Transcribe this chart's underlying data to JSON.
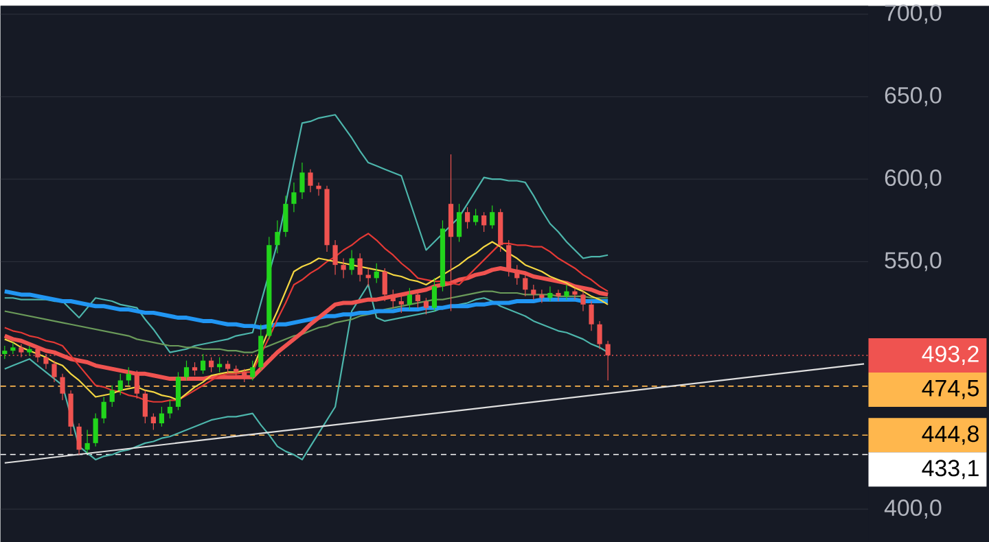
{
  "chart_data": {
    "type": "candlestick",
    "categories": [
      null,
      null,
      null,
      null,
      null,
      null,
      null,
      null,
      null,
      null,
      null,
      null,
      null,
      null,
      null,
      null,
      null,
      null,
      null,
      null,
      null,
      null,
      null,
      null,
      null,
      null,
      null,
      null,
      null,
      null,
      null,
      null,
      null,
      null,
      null,
      null,
      null,
      null,
      null,
      null,
      null,
      null,
      null,
      null,
      null,
      null,
      null,
      null,
      null,
      null,
      null,
      null,
      null,
      null,
      null,
      null,
      null,
      null,
      null,
      null,
      null,
      null,
      null,
      null,
      null,
      null,
      null,
      null,
      null,
      null,
      null,
      null,
      null,
      null,
      null,
      null,
      null,
      null,
      null,
      null,
      null,
      null,
      null,
      null,
      null,
      null,
      null,
      null,
      null,
      null,
      null,
      null,
      null,
      null,
      null,
      null,
      null,
      null,
      null,
      null,
      null,
      null,
      null,
      null,
      null
    ],
    "ohlc": [
      [
        494,
        499,
        491,
        496
      ],
      [
        496,
        501,
        494,
        498
      ],
      [
        498,
        500,
        492,
        495
      ],
      [
        495,
        499,
        493,
        497
      ],
      [
        497,
        499,
        489,
        492
      ],
      [
        492,
        494,
        485,
        488
      ],
      [
        488,
        490,
        477,
        480
      ],
      [
        480,
        482,
        466,
        470
      ],
      [
        470,
        472,
        445,
        450
      ],
      [
        450,
        452,
        433,
        436
      ],
      [
        436,
        448,
        434,
        440
      ],
      [
        440,
        458,
        438,
        455
      ],
      [
        455,
        468,
        452,
        465
      ],
      [
        465,
        475,
        462,
        472
      ],
      [
        472,
        482,
        469,
        478
      ],
      [
        478,
        486,
        475,
        482
      ],
      [
        482,
        484,
        467,
        470
      ],
      [
        470,
        472,
        452,
        456
      ],
      [
        456,
        458,
        448,
        452
      ],
      [
        452,
        462,
        450,
        458
      ],
      [
        458,
        466,
        455,
        462
      ],
      [
        462,
        483,
        460,
        480
      ],
      [
        480,
        490,
        478,
        486
      ],
      [
        486,
        489,
        481,
        484
      ],
      [
        484,
        494,
        482,
        490
      ],
      [
        490,
        492,
        483,
        486
      ],
      [
        486,
        492,
        483,
        488
      ],
      [
        488,
        490,
        482,
        485
      ],
      [
        485,
        487,
        480,
        483
      ],
      [
        483,
        485,
        477,
        480
      ],
      [
        480,
        490,
        478,
        486
      ],
      [
        486,
        512,
        484,
        505
      ],
      [
        505,
        565,
        503,
        560
      ],
      [
        560,
        575,
        555,
        568
      ],
      [
        568,
        590,
        565,
        585
      ],
      [
        585,
        598,
        580,
        592
      ],
      [
        592,
        610,
        588,
        604
      ],
      [
        604,
        606,
        592,
        596
      ],
      [
        596,
        598,
        590,
        594
      ],
      [
        594,
        596,
        556,
        560
      ],
      [
        560,
        563,
        542,
        548
      ],
      [
        548,
        552,
        540,
        545
      ],
      [
        545,
        557,
        542,
        552
      ],
      [
        552,
        555,
        538,
        542
      ],
      [
        542,
        546,
        535,
        540
      ],
      [
        540,
        549,
        537,
        544
      ],
      [
        544,
        546,
        526,
        530
      ],
      [
        530,
        533,
        522,
        526
      ],
      [
        526,
        529,
        519,
        524
      ],
      [
        524,
        534,
        521,
        530
      ],
      [
        530,
        532,
        522,
        526
      ],
      [
        526,
        528,
        518,
        522
      ],
      [
        522,
        540,
        520,
        535
      ],
      [
        535,
        575,
        532,
        570
      ],
      [
        585,
        615,
        520,
        565
      ],
      [
        565,
        585,
        562,
        580
      ],
      [
        580,
        583,
        570,
        574
      ],
      [
        574,
        582,
        572,
        578
      ],
      [
        578,
        580,
        568,
        572
      ],
      [
        572,
        584,
        570,
        580
      ],
      [
        580,
        582,
        556,
        560
      ],
      [
        560,
        563,
        541,
        545
      ],
      [
        545,
        548,
        536,
        540
      ],
      [
        540,
        542,
        529,
        533
      ],
      [
        533,
        536,
        527,
        530
      ],
      [
        530,
        533,
        525,
        528
      ],
      [
        528,
        535,
        526,
        531
      ],
      [
        531,
        533,
        526,
        529
      ],
      [
        529,
        536,
        527,
        532
      ],
      [
        532,
        534,
        527,
        530
      ],
      [
        530,
        532,
        520,
        524
      ],
      [
        524,
        526,
        508,
        512
      ],
      [
        512,
        514,
        497,
        500
      ],
      [
        500,
        502,
        478,
        493.2
      ],
      null,
      null,
      null,
      null,
      null,
      null,
      null,
      null,
      null,
      null,
      null,
      null,
      null,
      null,
      null,
      null,
      null,
      null,
      null,
      null,
      null,
      null,
      null,
      null,
      null,
      null,
      null,
      null,
      null,
      null,
      null
    ],
    "series": [
      {
        "type": "line",
        "color": "#4db6ac",
        "values": [
          528,
          528,
          527,
          527,
          527,
          527,
          526,
          526,
          521,
          516,
          522,
          528,
          527,
          526,
          524,
          523,
          522,
          515,
          509,
          502,
          495,
          496,
          497,
          499,
          500,
          501,
          502,
          503,
          505,
          506,
          507,
          525,
          null,
          561,
          585,
          610,
          634,
          635,
          637,
          638,
          639,
          632,
          625,
          617,
          610,
          608,
          606,
          604,
          602,
          587,
          572,
          557,
          562,
          567,
          572,
          577,
          585,
          593,
          601,
          600,
          600,
          599,
          599,
          598,
          590,
          581,
          573,
          568,
          562,
          557,
          552,
          553,
          553,
          554,
          null,
          null,
          null,
          null,
          null,
          null,
          null,
          null,
          null,
          null,
          null,
          null,
          null,
          null,
          null,
          null,
          null,
          null,
          null,
          null,
          null,
          null,
          null,
          null,
          null,
          null,
          null,
          null,
          null,
          null,
          null
        ]
      },
      {
        "type": "line",
        "color": "#4db6ac",
        "values": [
          485,
          487,
          489,
          491,
          487,
          483,
          479,
          475,
          null,
          438,
          434,
          430,
          432,
          433,
          435,
          436,
          438,
          440,
          441,
          443,
          444,
          446,
          448,
          450,
          452,
          454,
          455,
          456,
          456,
          457,
          458,
          451,
          445,
          438,
          435,
          433,
          430,
          438,
          446,
          454,
          462,
          491,
          520,
          528,
          536,
          516,
          514,
          515,
          516,
          517,
          518,
          519,
          520,
          522,
          523,
          524,
          525,
          527,
          528,
          526,
          523,
          521,
          519,
          517,
          514,
          512,
          510,
          508,
          507,
          505,
          503,
          500,
          498,
          495,
          null,
          null,
          null,
          null,
          null,
          null,
          null,
          null,
          null,
          null,
          null,
          null,
          null,
          null,
          null,
          null,
          null,
          null,
          null,
          null,
          null,
          null,
          null,
          null,
          null,
          null,
          null,
          null,
          null,
          null,
          null
        ]
      },
      {
        "type": "line",
        "color": "#6b9b5a",
        "values": [
          520,
          519,
          518,
          517,
          516,
          515,
          514,
          513,
          512,
          511,
          510,
          509,
          508,
          507,
          506,
          505,
          503,
          502,
          501,
          500,
          499,
          499,
          498,
          498,
          497,
          497,
          497,
          496,
          496,
          495,
          495,
          497,
          499,
          501,
          503,
          505,
          506,
          508,
          510,
          511,
          513,
          514,
          515,
          517,
          518,
          519,
          521,
          522,
          523,
          524,
          525,
          526,
          527,
          527,
          528,
          529,
          530,
          531,
          532,
          532,
          531,
          531,
          531,
          530,
          530,
          530,
          530,
          529,
          529,
          529,
          529,
          528,
          528,
          528,
          null,
          null,
          null,
          null,
          null,
          null,
          null,
          null,
          null,
          null,
          null,
          null,
          null,
          null,
          null,
          null,
          null,
          null,
          null,
          null,
          null,
          null,
          null,
          null,
          null,
          null,
          null,
          null,
          null,
          null,
          null
        ]
      },
      {
        "type": "line",
        "color": "#2196f3",
        "values": [
          532,
          531,
          530,
          530,
          529,
          528,
          527,
          526,
          526,
          525,
          524,
          523,
          523,
          522,
          521,
          521,
          520,
          519,
          519,
          518,
          517,
          516,
          516,
          515,
          514,
          514,
          513,
          512,
          512,
          511,
          511,
          510,
          511,
          512,
          512,
          513,
          514,
          515,
          516,
          517,
          517,
          518,
          518,
          519,
          519,
          520,
          520,
          520,
          521,
          521,
          521,
          522,
          522,
          522,
          523,
          523,
          523,
          524,
          524,
          525,
          525,
          525,
          526,
          526,
          526,
          527,
          527,
          527,
          527,
          527,
          526,
          526,
          526,
          526,
          null,
          null,
          null,
          null,
          null,
          null,
          null,
          null,
          null,
          null,
          null,
          null,
          null,
          null,
          null,
          null,
          null,
          null,
          null,
          null,
          null,
          null,
          null,
          null,
          null,
          null,
          null,
          null,
          null,
          null,
          null
        ]
      },
      {
        "type": "line",
        "color": "#f05350",
        "values": [
          505,
          503,
          502,
          500,
          498,
          496,
          495,
          493,
          491,
          490,
          489,
          487,
          486,
          485,
          484,
          483,
          482,
          482,
          481,
          480,
          479,
          479,
          479,
          479,
          479,
          480,
          480,
          480,
          480,
          480,
          480,
          485,
          490,
          495,
          499,
          503,
          507,
          512,
          516,
          520,
          524,
          525,
          525,
          526,
          527,
          527,
          528,
          529,
          530,
          531,
          532,
          533,
          535,
          536,
          537,
          539,
          540,
          542,
          543,
          545,
          546,
          545,
          544,
          543,
          541,
          540,
          539,
          538,
          537,
          535,
          534,
          533,
          531,
          530,
          null,
          null,
          null,
          null,
          null,
          null,
          null,
          null,
          null,
          null,
          null,
          null,
          null,
          null,
          null,
          null,
          null,
          null,
          null,
          null,
          null,
          null,
          null,
          null,
          null,
          null,
          null,
          null,
          null,
          null,
          null
        ]
      },
      {
        "type": "line",
        "color": "#e53935",
        "values": [
          510,
          508,
          507,
          505,
          504,
          502,
          501,
          499,
          493,
          487,
          481,
          475,
          474,
          472,
          471,
          469,
          468,
          466,
          465,
          465,
          466,
          466,
          469,
          472,
          475,
          478,
          481,
          482,
          482,
          483,
          483,
          494,
          504,
          515,
          525,
          536,
          539,
          543,
          546,
          550,
          553,
          557,
          560,
          564,
          567,
          563,
          558,
          554,
          549,
          545,
          540,
          539,
          538,
          538,
          537,
          536,
          541,
          546,
          551,
          556,
          561,
          561,
          560,
          560,
          559,
          559,
          556,
          552,
          549,
          546,
          542,
          539,
          535,
          532,
          null,
          null,
          null,
          null,
          null,
          null,
          null,
          null,
          null,
          null,
          null,
          null,
          null,
          null,
          null,
          null,
          null,
          null,
          null,
          null,
          null,
          null,
          null,
          null,
          null,
          null,
          null,
          null,
          null,
          null,
          null
        ]
      },
      {
        "type": "line",
        "color": "#f5d742",
        "values": [
          503,
          501,
          498,
          496,
          494,
          492,
          489,
          487,
          482,
          478,
          473,
          468,
          469,
          470,
          472,
          473,
          474,
          472,
          471,
          469,
          468,
          466,
          470,
          474,
          477,
          481,
          482,
          483,
          483,
          484,
          485,
          497,
          509,
          520,
          532,
          544,
          547,
          549,
          552,
          551,
          550,
          549,
          548,
          547,
          546,
          545,
          544,
          542,
          541,
          539,
          538,
          536,
          539,
          542,
          545,
          548,
          552,
          555,
          559,
          562,
          559,
          555,
          552,
          548,
          546,
          544,
          541,
          539,
          537,
          534,
          532,
          529,
          527,
          524,
          null,
          null,
          null,
          null,
          null,
          null,
          null,
          null,
          null,
          null,
          null,
          null,
          null,
          null,
          null,
          null,
          null,
          null,
          null,
          null,
          null,
          null,
          null,
          null,
          null,
          null,
          null,
          null,
          null,
          null,
          null
        ]
      },
      {
        "type": "line",
        "color": "#e0e0e0",
        "values": [
          428,
          null,
          null,
          null,
          null,
          null,
          null,
          null,
          null,
          null,
          null,
          null,
          null,
          null,
          null,
          null,
          null,
          null,
          null,
          null,
          null,
          null,
          null,
          null,
          null,
          null,
          null,
          null,
          null,
          null,
          null,
          null,
          null,
          null,
          null,
          null,
          null,
          null,
          null,
          null,
          null,
          null,
          null,
          null,
          null,
          null,
          null,
          null,
          null,
          null,
          null,
          null,
          null,
          null,
          null,
          null,
          null,
          null,
          null,
          null,
          null,
          null,
          null,
          null,
          null,
          null,
          null,
          null,
          null,
          null,
          null,
          null,
          null,
          null,
          null,
          null,
          null,
          null,
          null,
          null,
          null,
          null,
          null,
          null,
          null,
          null,
          null,
          null,
          null,
          null,
          null,
          null,
          null,
          null,
          null,
          null,
          null,
          null,
          null,
          null,
          null,
          null,
          null,
          null,
          488
        ]
      }
    ],
    "ref_lines": [
      {
        "axis": "y",
        "value": 493.2,
        "label": "493,2",
        "color": "#ef5350",
        "line_style": "dotted"
      },
      {
        "axis": "y",
        "value": 474.5,
        "label": "474,5",
        "color": "#ffb74d",
        "line_style": "dashed"
      },
      {
        "axis": "y",
        "value": 444.8,
        "label": "444,8",
        "color": "#ffb74d",
        "line_style": "dashed"
      },
      {
        "axis": "y",
        "value": 433.1,
        "label": "433,1",
        "color": "#ffffff",
        "line_style": "dashed"
      }
    ],
    "ylim": [
      380,
      705
    ],
    "yticks": [
      {
        "value": 400,
        "label": "400,0"
      },
      {
        "value": 550,
        "label": "550,0"
      },
      {
        "value": 600,
        "label": "600,0"
      },
      {
        "value": 650,
        "label": "650,0"
      },
      {
        "value": 700,
        "label": "700,0"
      }
    ],
    "grid": "y",
    "tick_labels": "y"
  }
}
